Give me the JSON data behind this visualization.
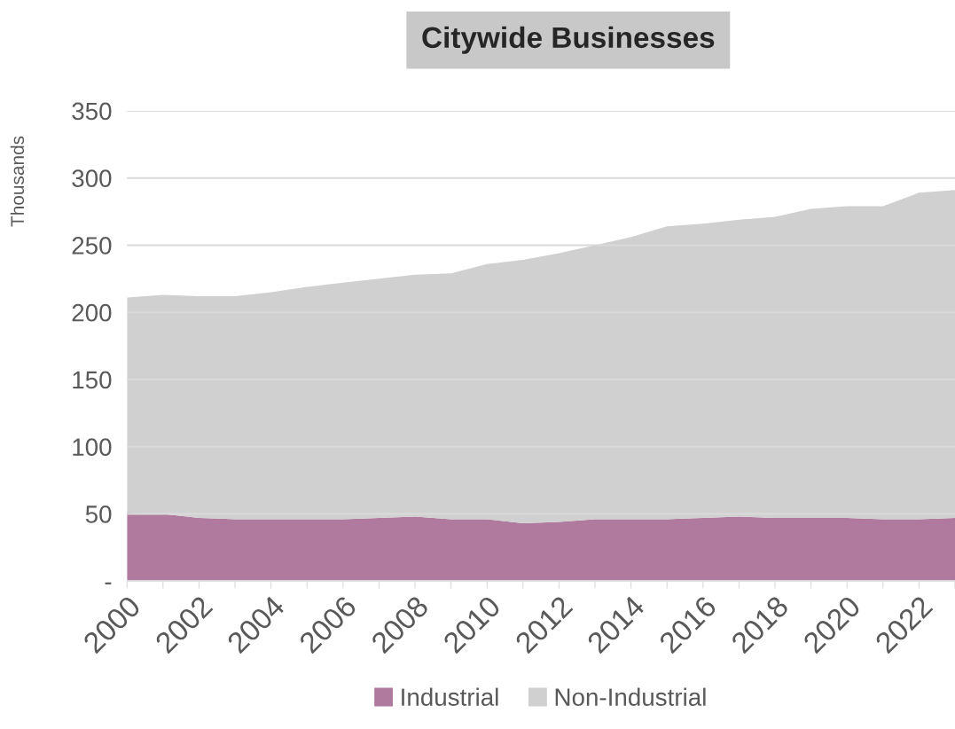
{
  "chart_data": {
    "type": "area",
    "title": "Citywide Businesses",
    "ylabel": "Thousands",
    "stacked": true,
    "x": [
      2000,
      2001,
      2002,
      2003,
      2004,
      2005,
      2006,
      2007,
      2008,
      2009,
      2010,
      2011,
      2012,
      2013,
      2014,
      2015,
      2016,
      2017,
      2018,
      2019,
      2020,
      2021,
      2022,
      2023
    ],
    "series": [
      {
        "name": "Industrial",
        "color": "#b07a9e",
        "values": [
          51,
          50,
          47,
          46,
          46,
          46,
          46,
          47,
          48,
          46,
          46,
          43,
          44,
          46,
          46,
          46,
          47,
          48,
          47,
          47,
          47,
          46,
          46,
          47
        ]
      },
      {
        "name": "Non-Industrial",
        "color": "#d0d0d0",
        "values": [
          160,
          163,
          165,
          166,
          169,
          173,
          176,
          178,
          180,
          183,
          190,
          196,
          200,
          204,
          210,
          218,
          219,
          221,
          224,
          230,
          232,
          233,
          243,
          244
        ]
      }
    ],
    "xlim": [
      2000,
      2023
    ],
    "xticks": [
      2000,
      {
        "value": 2001,
        "label": null
      },
      2002,
      {
        "value": 2003,
        "label": null
      },
      2004,
      {
        "value": 2005,
        "label": null
      },
      2006,
      {
        "value": 2007,
        "label": null
      },
      2008,
      {
        "value": 2009,
        "label": null
      },
      2010,
      {
        "value": 2011,
        "label": null
      },
      2012,
      {
        "value": 2013,
        "label": null
      },
      2014,
      {
        "value": 2015,
        "label": null
      },
      2016,
      {
        "value": 2017,
        "label": null
      },
      2018,
      {
        "value": 2019,
        "label": null
      },
      2020,
      {
        "value": 2021,
        "label": null
      },
      2022,
      {
        "value": 2023,
        "label": null
      }
    ],
    "ylim": [
      0,
      350
    ],
    "yticks": [
      {
        "value": 0,
        "label": "-"
      },
      50,
      100,
      150,
      200,
      250,
      300,
      350
    ],
    "grid": "y",
    "legend": "bottom"
  }
}
